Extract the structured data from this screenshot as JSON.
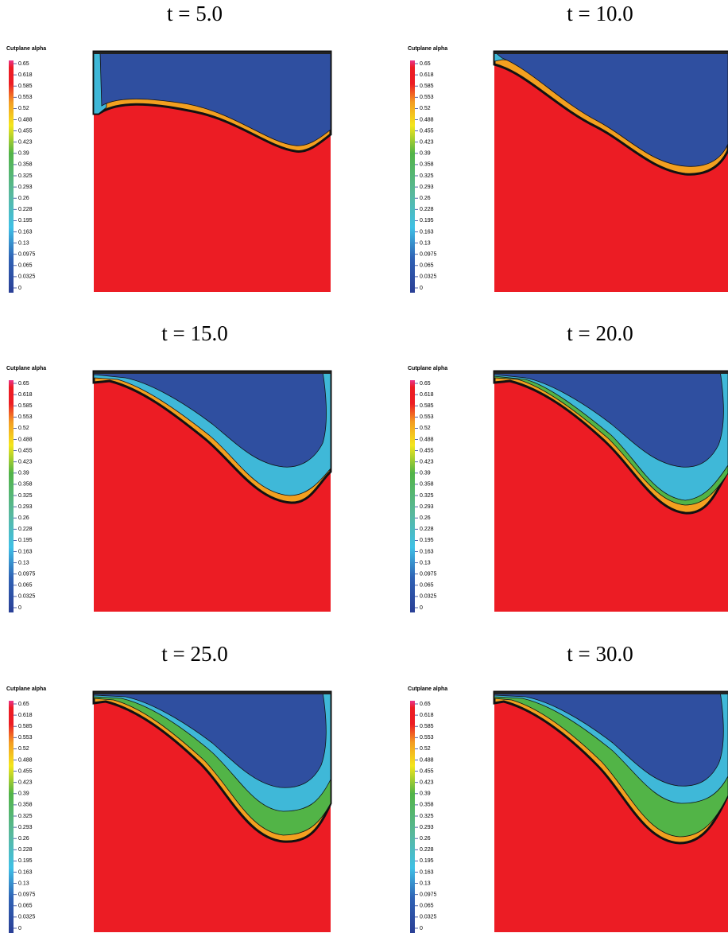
{
  "panels": [
    {
      "title": "t = 5.0"
    },
    {
      "title": "t = 10.0"
    },
    {
      "title": "t = 15.0"
    },
    {
      "title": "t = 20.0"
    },
    {
      "title": "t = 25.0"
    },
    {
      "title": "t = 30.0"
    }
  ],
  "colorbar": {
    "title": "Cutplane alpha",
    "ticks": [
      0.65,
      0.618,
      0.585,
      0.553,
      0.52,
      0.488,
      0.455,
      0.423,
      0.39,
      0.358,
      0.325,
      0.293,
      0.26,
      0.228,
      0.195,
      0.163,
      0.13,
      0.0975,
      0.065,
      0.0325,
      0
    ]
  }
}
